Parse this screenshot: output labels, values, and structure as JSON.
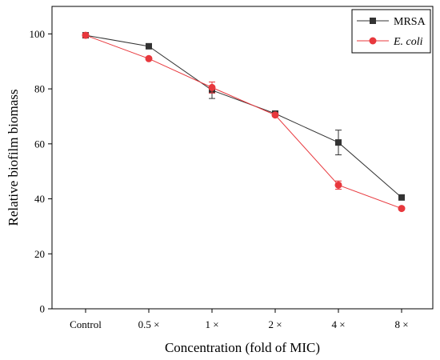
{
  "chart_data": {
    "type": "line",
    "categories": [
      "Control",
      "0.5 ×",
      "1 ×",
      "2 ×",
      "4 ×",
      "8 ×"
    ],
    "xlabel": "Concentration (fold of MIC)",
    "ylabel": "Relative biofilm biomass",
    "ylim": [
      0,
      110
    ],
    "yticks": [
      0,
      20,
      40,
      60,
      80,
      100
    ],
    "grid": false,
    "legend_position": "top-right",
    "series": [
      {
        "name": "MRSA",
        "marker": "square",
        "color": "#333333",
        "values": [
          99.5,
          95.5,
          79.5,
          71.0,
          60.5,
          40.5
        ],
        "errors": [
          0.5,
          0.5,
          3.0,
          0.5,
          4.5,
          0.5
        ]
      },
      {
        "name": "E. coli",
        "name_style": "italic",
        "marker": "circle",
        "color": "#e8383d",
        "values": [
          99.5,
          91.0,
          80.5,
          70.5,
          45.0,
          36.5
        ],
        "errors": [
          0.5,
          0.5,
          2.0,
          0.5,
          1.5,
          0.5
        ]
      }
    ]
  }
}
